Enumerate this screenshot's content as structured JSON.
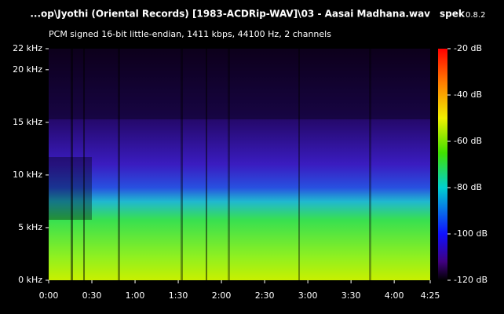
{
  "chart_data": {
    "type": "spectrogram",
    "title": "...op\\Jyothi (Oriental Records) [1983-ACDRip-WAV]\\03 - Aasai Madhana.wav",
    "app": {
      "name": "spek",
      "version": "0.8.2"
    },
    "subtitle": "PCM signed 16-bit little-endian, 1411 kbps, 44100 Hz, 2 channels",
    "xlim": [
      0,
      265
    ],
    "xticks": [
      {
        "value": 0,
        "label": "0:00"
      },
      {
        "value": 30,
        "label": "0:30"
      },
      {
        "value": 60,
        "label": "1:00"
      },
      {
        "value": 90,
        "label": "1:30"
      },
      {
        "value": 120,
        "label": "2:00"
      },
      {
        "value": 150,
        "label": "2:30"
      },
      {
        "value": 180,
        "label": "3:00"
      },
      {
        "value": 210,
        "label": "3:30"
      },
      {
        "value": 240,
        "label": "4:00"
      },
      {
        "value": 265,
        "label": "4:25"
      }
    ],
    "ylim": [
      0,
      22
    ],
    "yticks": [
      {
        "value": 0,
        "label": "0 kHz"
      },
      {
        "value": 5,
        "label": "5 kHz"
      },
      {
        "value": 10,
        "label": "10 kHz"
      },
      {
        "value": 15,
        "label": "15 kHz"
      },
      {
        "value": 20,
        "label": "20 kHz"
      },
      {
        "value": 22,
        "label": "22 kHz"
      }
    ],
    "colorbar": {
      "lim": [
        -120,
        -20
      ],
      "ticks": [
        {
          "value": -20,
          "label": "-20 dB"
        },
        {
          "value": -40,
          "label": "-40 dB"
        },
        {
          "value": -60,
          "label": "-60 dB"
        },
        {
          "value": -80,
          "label": "-80 dB"
        },
        {
          "value": -100,
          "label": "-100 dB"
        },
        {
          "value": -120,
          "label": "-120 dB"
        }
      ]
    }
  }
}
